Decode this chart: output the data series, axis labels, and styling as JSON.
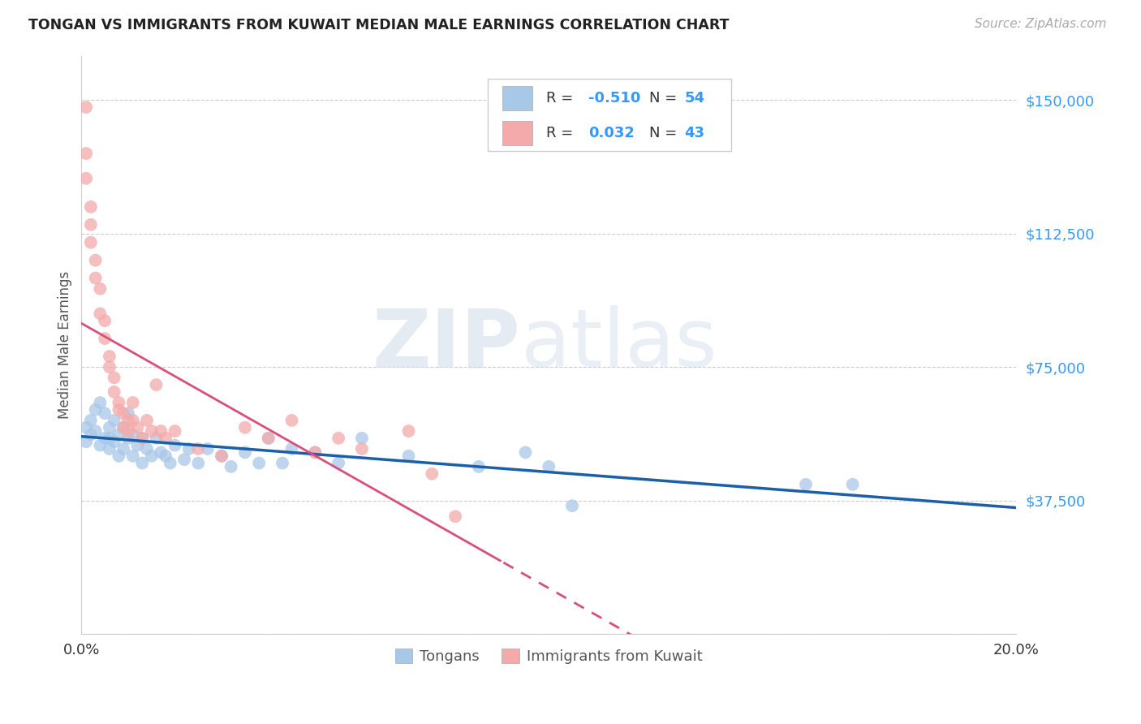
{
  "title": "TONGAN VS IMMIGRANTS FROM KUWAIT MEDIAN MALE EARNINGS CORRELATION CHART",
  "source": "Source: ZipAtlas.com",
  "ylabel": "Median Male Earnings",
  "xlim": [
    0.0,
    0.2
  ],
  "ylim": [
    0,
    162500
  ],
  "yticks": [
    0,
    37500,
    75000,
    112500,
    150000
  ],
  "ytick_labels": [
    "",
    "$37,500",
    "$75,000",
    "$112,500",
    "$150,000"
  ],
  "xticks": [
    0.0,
    0.05,
    0.1,
    0.15,
    0.2
  ],
  "xtick_labels": [
    "0.0%",
    "",
    "",
    "",
    "20.0%"
  ],
  "legend_r_blue": "-0.510",
  "legend_n_blue": "54",
  "legend_r_pink": "0.032",
  "legend_n_pink": "43",
  "legend_label_blue": "Tongans",
  "legend_label_pink": "Immigrants from Kuwait",
  "blue_color": "#a8c8e8",
  "pink_color": "#f4aaaa",
  "line_blue": "#1a5fa8",
  "line_pink": "#d94f7a",
  "watermark_zip": "ZIP",
  "watermark_atlas": "atlas",
  "blue_x": [
    0.001,
    0.001,
    0.002,
    0.002,
    0.003,
    0.003,
    0.004,
    0.004,
    0.005,
    0.005,
    0.006,
    0.006,
    0.006,
    0.007,
    0.007,
    0.008,
    0.008,
    0.009,
    0.009,
    0.01,
    0.01,
    0.011,
    0.011,
    0.012,
    0.013,
    0.013,
    0.014,
    0.015,
    0.016,
    0.017,
    0.018,
    0.019,
    0.02,
    0.022,
    0.023,
    0.025,
    0.027,
    0.03,
    0.032,
    0.035,
    0.038,
    0.04,
    0.043,
    0.045,
    0.05,
    0.055,
    0.06,
    0.07,
    0.085,
    0.095,
    0.1,
    0.105,
    0.155,
    0.165
  ],
  "blue_y": [
    58000,
    54000,
    60000,
    56000,
    63000,
    57000,
    65000,
    53000,
    62000,
    55000,
    58000,
    52000,
    55000,
    60000,
    54000,
    56000,
    50000,
    58000,
    52000,
    62000,
    55000,
    56000,
    50000,
    53000,
    55000,
    48000,
    52000,
    50000,
    55000,
    51000,
    50000,
    48000,
    53000,
    49000,
    52000,
    48000,
    52000,
    50000,
    47000,
    51000,
    48000,
    55000,
    48000,
    52000,
    51000,
    48000,
    55000,
    50000,
    47000,
    51000,
    47000,
    36000,
    42000,
    42000
  ],
  "pink_x": [
    0.001,
    0.001,
    0.001,
    0.002,
    0.002,
    0.002,
    0.003,
    0.003,
    0.004,
    0.004,
    0.005,
    0.005,
    0.006,
    0.006,
    0.007,
    0.007,
    0.008,
    0.008,
    0.009,
    0.009,
    0.01,
    0.01,
    0.011,
    0.011,
    0.012,
    0.013,
    0.014,
    0.015,
    0.016,
    0.017,
    0.018,
    0.02,
    0.025,
    0.03,
    0.035,
    0.04,
    0.045,
    0.05,
    0.055,
    0.06,
    0.07,
    0.075,
    0.08
  ],
  "pink_y": [
    148000,
    135000,
    128000,
    120000,
    115000,
    110000,
    105000,
    100000,
    97000,
    90000,
    88000,
    83000,
    78000,
    75000,
    72000,
    68000,
    65000,
    63000,
    58000,
    62000,
    60000,
    57000,
    65000,
    60000,
    58000,
    55000,
    60000,
    57000,
    70000,
    57000,
    55000,
    57000,
    52000,
    50000,
    58000,
    55000,
    60000,
    51000,
    55000,
    52000,
    57000,
    45000,
    33000
  ]
}
